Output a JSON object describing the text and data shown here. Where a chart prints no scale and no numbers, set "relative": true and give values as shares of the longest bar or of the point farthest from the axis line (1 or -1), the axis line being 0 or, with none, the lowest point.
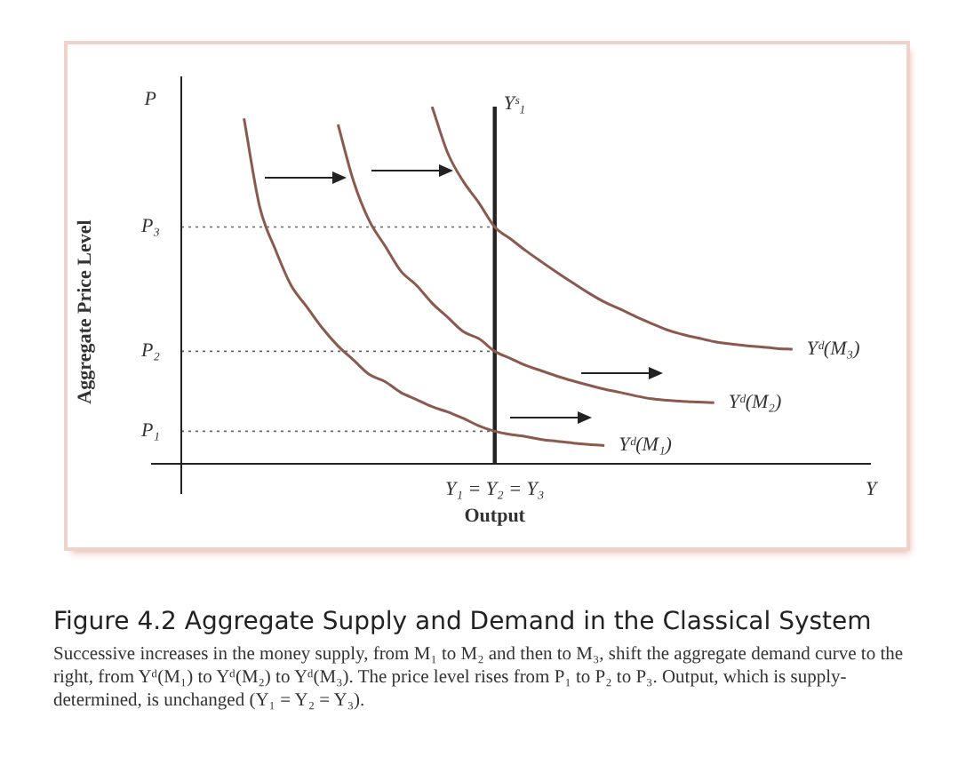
{
  "chart_data": {
    "type": "line",
    "relative": true,
    "title": "Figure 4.2  Aggregate Supply and Demand in the Classical System",
    "xlabel": "Output",
    "ylabel": "Aggregate Price Level",
    "legend": false,
    "grid": false,
    "marker": "none",
    "categories": [
      null,
      null,
      null,
      null,
      null,
      null,
      null,
      null,
      null,
      null,
      null,
      null,
      null,
      null,
      null,
      null,
      null,
      null,
      null,
      null,
      "Y₁ = Y₂ = Y₃",
      null,
      null,
      null,
      null,
      null,
      null,
      null,
      null,
      null,
      null,
      null,
      null,
      null,
      null,
      null,
      null,
      null,
      null,
      null,
      null,
      null,
      null,
      null,
      "Y"
    ],
    "series": [
      {
        "name": "Yᵈ(M₁)",
        "color": "#8a5a4e",
        "values": [
          null,
          null,
          null,
          null,
          0.967,
          0.72,
          0.6,
          0.5,
          0.44,
          0.38,
          0.33,
          0.29,
          0.25,
          0.23,
          0.2,
          0.18,
          0.16,
          0.145,
          0.127,
          0.106,
          0.091,
          0.082,
          0.076,
          0.068,
          0.063,
          0.058,
          0.054,
          0.051,
          null,
          null,
          null,
          null,
          null,
          null,
          null,
          null,
          null,
          null,
          null,
          null,
          null,
          null,
          null,
          null,
          null
        ]
      },
      {
        "name": "Yᵈ(M₂)",
        "color": "#8a5a4e",
        "values": [
          null,
          null,
          null,
          null,
          null,
          null,
          null,
          null,
          null,
          null,
          0.95,
          0.79,
          0.68,
          0.61,
          0.54,
          0.5,
          0.45,
          0.41,
          0.37,
          0.35,
          0.315,
          0.295,
          0.275,
          0.26,
          0.245,
          0.232,
          0.22,
          0.209,
          0.2,
          0.19,
          0.182,
          0.178,
          0.175,
          0.173,
          0.171,
          null,
          null,
          null,
          null,
          null,
          null,
          null,
          null,
          null,
          null
        ]
      },
      {
        "name": "Yᵈ(M₃)",
        "color": "#8a5a4e",
        "values": [
          null,
          null,
          null,
          null,
          null,
          null,
          null,
          null,
          null,
          null,
          null,
          null,
          null,
          null,
          null,
          null,
          1,
          0.87,
          0.79,
          0.73,
          0.663,
          0.63,
          0.596,
          0.565,
          0.535,
          0.506,
          0.478,
          0.453,
          0.433,
          0.412,
          0.393,
          0.375,
          0.362,
          0.352,
          0.342,
          0.336,
          0.331,
          0.327,
          0.323,
          0.321,
          null,
          null,
          null,
          null,
          null
        ]
      }
    ],
    "ref_lines": [
      {
        "axis": "x",
        "value": "Y₁ = Y₂ = Y₃",
        "label": "Yˢ₁",
        "color": "#222222"
      },
      {
        "axis": "y",
        "value": 0.663,
        "label": "P₃",
        "line_style": "dotted"
      },
      {
        "axis": "y",
        "value": 0.315,
        "label": "P₂",
        "line_style": "dotted"
      },
      {
        "axis": "y",
        "value": 0.091,
        "label": "P₁",
        "line_style": "dotted"
      }
    ],
    "annotations": [
      "P",
      "Successive increases in the money supply, from M₁ to M₂ and then to M₃, shift the aggregate demand curve to the right, from Yᵈ(M₁) to Yᵈ(M₂) to Yᵈ(M₃). The price level rises from P₁ to P₂ to P₃. Output, which is supply-determined, is unchanged (Y₁ = Y₂ = Y₃)."
    ]
  }
}
